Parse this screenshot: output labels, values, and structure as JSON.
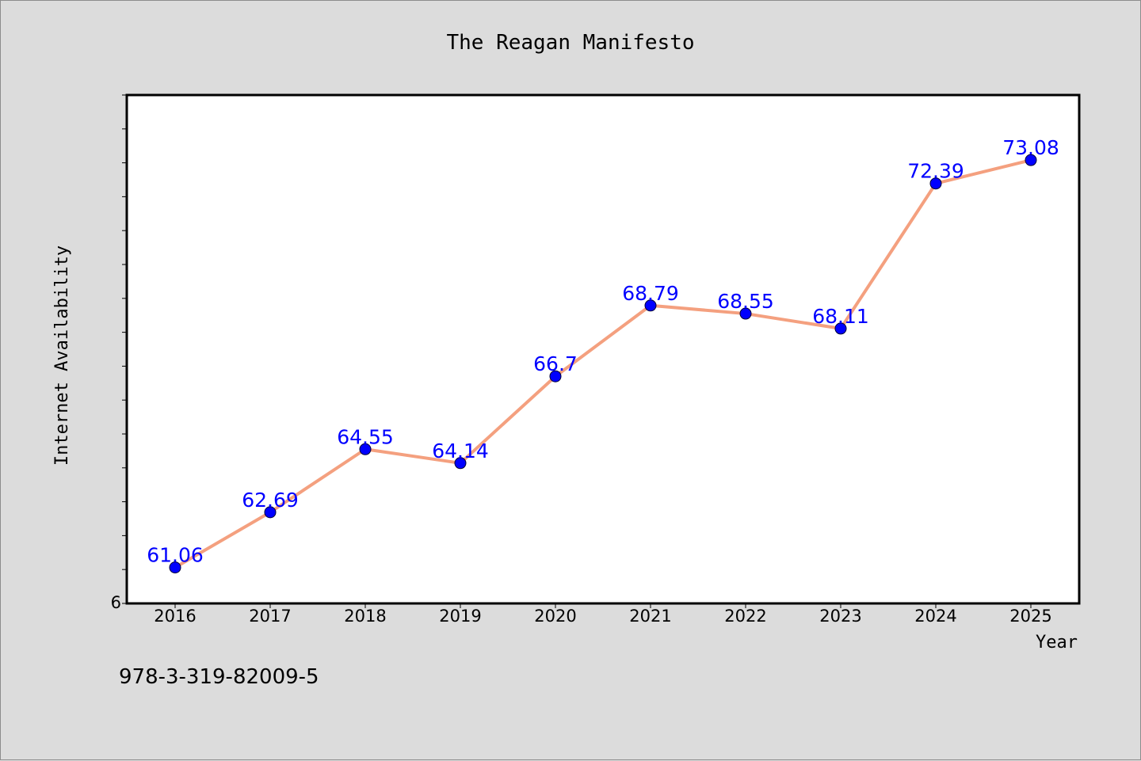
{
  "chart_data": {
    "type": "line",
    "title": "The Reagan Manifesto",
    "xlabel": "Year",
    "ylabel": "Internet Availability",
    "categories": [
      "2016",
      "2017",
      "2018",
      "2019",
      "2020",
      "2021",
      "2022",
      "2023",
      "2024",
      "2025"
    ],
    "series": [
      {
        "values": [
          61.06,
          62.69,
          64.55,
          64.14,
          66.7,
          68.79,
          68.55,
          68.11,
          72.39,
          73.08
        ]
      }
    ],
    "data_labels": [
      "61.06",
      "62.69",
      "64.55",
      "64.14",
      "66.7",
      "68.79",
      "68.55",
      "68.11",
      "72.39",
      "73.08"
    ],
    "ylim": [
      60,
      75
    ],
    "y_tick_labels": [
      "6"
    ],
    "grid": false,
    "line_color": "#f4a07f",
    "marker_color": "#0000ff",
    "label_color": "#0000ff",
    "plot_background": "#ffffff",
    "page_background": "#dcdcdc"
  },
  "footer": {
    "isbn": "978-3-319-82009-5"
  }
}
